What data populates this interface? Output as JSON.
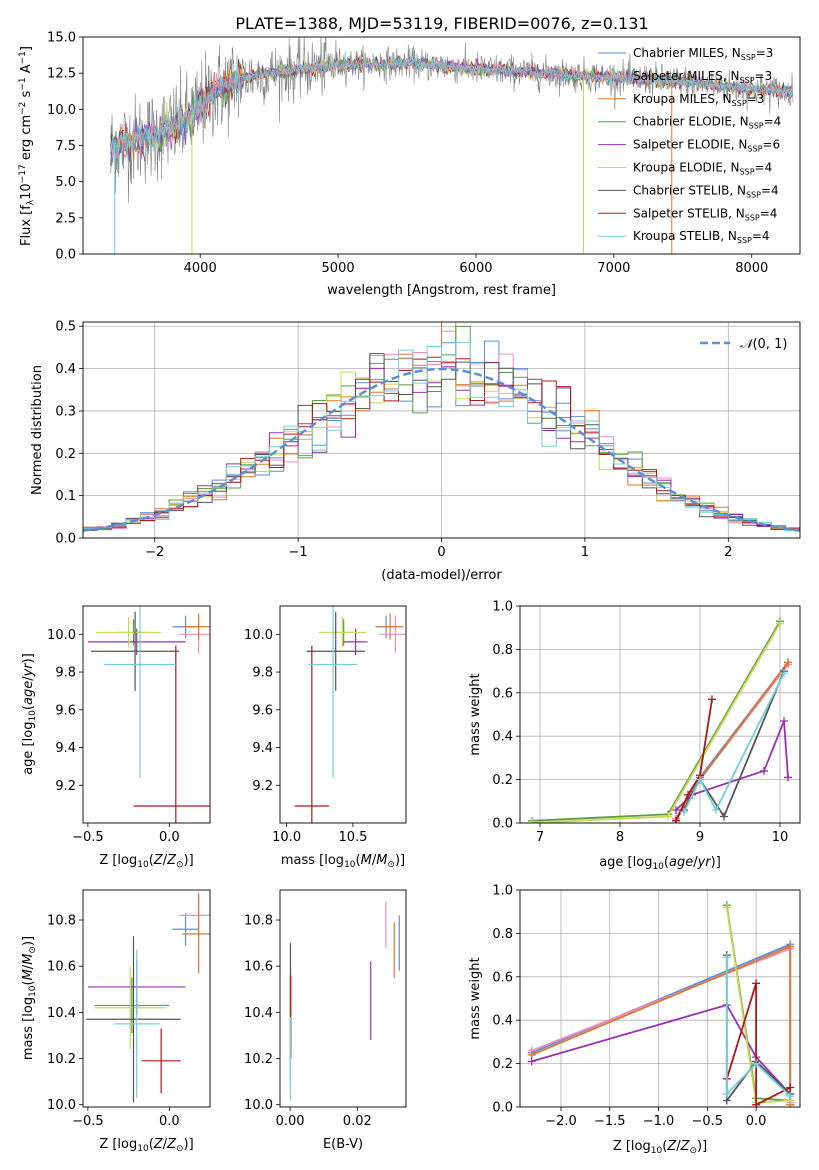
{
  "figure_title": "PLATE=1388, MJD=53119, FIBERID=0076, z=0.131",
  "models": [
    {
      "name": "Chabrier MILES, N<sub>SSP</sub>=3",
      "plain": "Chabrier MILES, NSSP=3",
      "color": "#5b8fd6"
    },
    {
      "name": "Salpeter MILES",
      "plain": "Salpeter MILES, NSSP=3",
      "color": "#f08cc0"
    },
    {
      "name": "Kroupa MILES",
      "plain": "Kroupa MILES, NSSP=3",
      "color": "#e0782c"
    },
    {
      "name": "Chabrier ELODIE",
      "plain": "Chabrier ELODIE, NSSP=4",
      "color": "#5a9e48"
    },
    {
      "name": "Salpeter ELODIE",
      "plain": "Salpeter ELODIE, NSSP=6",
      "color": "#9a30b0"
    },
    {
      "name": "Kroupa ELODIE",
      "plain": "Kroupa ELODIE, NSSP=4",
      "color": "#c8d850"
    },
    {
      "name": "Chabrier STELIB",
      "plain": "Chabrier STELIB, NSSP=4",
      "color": "#555555"
    },
    {
      "name": "Salpeter STELIB",
      "plain": "Salpeter STELIB, NSSP=4",
      "color": "#b01818"
    },
    {
      "name": "Kroupa STELIB",
      "plain": "Kroupa STELIB, NSSP=4",
      "color": "#70d0d8"
    }
  ],
  "legend": [
    {
      "base": "Chabrier MILES, N",
      "sub": "SSP",
      "tail": "=3"
    },
    {
      "base": "Salpeter MILES, N",
      "sub": "SSP",
      "tail": "=3"
    },
    {
      "base": "Kroupa MILES, N",
      "sub": "SSP",
      "tail": "=3"
    },
    {
      "base": "Chabrier ELODIE, N",
      "sub": "SSP",
      "tail": "=4"
    },
    {
      "base": "Salpeter ELODIE, N",
      "sub": "SSP",
      "tail": "=6"
    },
    {
      "base": "Kroupa ELODIE, N",
      "sub": "SSP",
      "tail": "=4"
    },
    {
      "base": "Chabrier STELIB, N",
      "sub": "SSP",
      "tail": "=4"
    },
    {
      "base": "Salpeter STELIB, N",
      "sub": "SSP",
      "tail": "=4"
    },
    {
      "base": "Kroupa STELIB, N",
      "sub": "SSP",
      "tail": "=4"
    }
  ],
  "chart_data": [
    {
      "id": "spectrum",
      "type": "line",
      "xlabel": "wavelength [Angstrom, rest frame]",
      "ylabel": "Flux [f_λ 10^-17 erg cm^-2 s^-1 A^-1]",
      "xlim": [
        3150,
        8350
      ],
      "ylim": [
        0,
        15
      ],
      "xticks": [
        4000,
        5000,
        6000,
        7000,
        8000
      ],
      "yticks": [
        0.0,
        2.5,
        5.0,
        7.5,
        10.0,
        12.5,
        15.0
      ],
      "grid": false,
      "legend_position": "right",
      "continuum": {
        "x": [
          3350,
          3500,
          3700,
          3900,
          4100,
          4300,
          4600,
          5000,
          5500,
          6000,
          6500,
          7000,
          7500,
          8000,
          8300
        ],
        "y": [
          7.4,
          7.8,
          8.3,
          9.2,
          11.2,
          12.2,
          12.6,
          13.1,
          13.2,
          12.8,
          12.5,
          12.2,
          11.9,
          11.4,
          11.2
        ]
      },
      "absorption_spikes": [
        {
          "x": 3940,
          "y": 0
        },
        {
          "x": 6780,
          "y": 0
        },
        {
          "x": 7420,
          "y": 0
        },
        {
          "x": 3380,
          "y": 0
        }
      ]
    },
    {
      "id": "residuals",
      "type": "step",
      "xlabel": "(data-model)/error",
      "ylabel": "Normed distribution",
      "xlim": [
        -2.5,
        2.5
      ],
      "ylim": [
        0,
        0.51
      ],
      "xticks": [
        -2,
        -1,
        0,
        1,
        2
      ],
      "yticks": [
        0.0,
        0.1,
        0.2,
        0.3,
        0.4,
        0.5
      ],
      "grid": true,
      "legend_position": "top-right",
      "reference_curve": {
        "name": "N(0,1)",
        "mean": 0,
        "sigma": 1
      },
      "bin_width": 0.1
    },
    {
      "id": "age_vs_Z",
      "type": "errorbar",
      "xlabel": "Z [log10(Z/Z⊙)]",
      "ylabel": "age [log10(age/yr)]",
      "xlim": [
        -0.53,
        0.25
      ],
      "ylim": [
        9.0,
        10.15
      ],
      "xticks": [
        -0.5,
        0.0
      ],
      "yticks": [
        9.2,
        9.4,
        9.6,
        9.8,
        10.0
      ],
      "points": [
        {
          "m": 0,
          "x": 0.1,
          "y": 10.04,
          "xerr": 0.08,
          "yerr": 0.06
        },
        {
          "m": 1,
          "x": 0.18,
          "y": 10.0,
          "xerr": 0.12,
          "yerr": 0.1
        },
        {
          "m": 2,
          "x": 0.18,
          "y": 10.04,
          "xerr": 0.1,
          "yerr": 0.07
        },
        {
          "m": 3,
          "x": -0.22,
          "y": 10.01,
          "xerr": 0.1,
          "yerr": 0.07
        },
        {
          "m": 4,
          "x": -0.2,
          "y": 9.96,
          "xerr": 0.3,
          "yerr": 0.07
        },
        {
          "m": 5,
          "x": -0.25,
          "y": 10.01,
          "xerr": 0.2,
          "yerr": 0.08
        },
        {
          "m": 6,
          "x": -0.21,
          "y": 9.91,
          "xerr": 0.27,
          "yerr": 0.21
        },
        {
          "m": 7,
          "x": 0.04,
          "y": 9.09,
          "xerr": 0.26,
          "yerr": 0.85
        },
        {
          "m": 8,
          "x": -0.18,
          "y": 9.84,
          "xerr": 0.22,
          "yerr": 0.6
        }
      ]
    },
    {
      "id": "age_vs_mass",
      "type": "errorbar",
      "xlabel": "mass [log10(M/M⊙)]",
      "ylabel": "",
      "xlim": [
        9.95,
        10.9
      ],
      "ylim": [
        9.0,
        10.15
      ],
      "xticks": [
        10.0,
        10.5
      ],
      "yticks": [
        9.2,
        9.4,
        9.6,
        9.8,
        10.0
      ],
      "points": [
        {
          "m": 0,
          "x": 10.75,
          "y": 10.04,
          "xerr": 0.08,
          "yerr": 0.06
        },
        {
          "m": 1,
          "x": 10.82,
          "y": 10.0,
          "xerr": 0.12,
          "yerr": 0.1
        },
        {
          "m": 2,
          "x": 10.78,
          "y": 10.04,
          "xerr": 0.1,
          "yerr": 0.07
        },
        {
          "m": 3,
          "x": 10.43,
          "y": 10.01,
          "xerr": 0.11,
          "yerr": 0.07
        },
        {
          "m": 4,
          "x": 10.52,
          "y": 9.96,
          "xerr": 0.09,
          "yerr": 0.07
        },
        {
          "m": 5,
          "x": 10.42,
          "y": 10.01,
          "xerr": 0.18,
          "yerr": 0.08
        },
        {
          "m": 6,
          "x": 10.37,
          "y": 9.91,
          "xerr": 0.22,
          "yerr": 0.21
        },
        {
          "m": 7,
          "x": 10.19,
          "y": 9.09,
          "xerr": 0.13,
          "yerr": 0.85
        },
        {
          "m": 8,
          "x": 10.35,
          "y": 9.84,
          "xerr": 0.18,
          "yerr": 0.6
        }
      ]
    },
    {
      "id": "weight_vs_age",
      "type": "line",
      "xlabel": "age [log10(age/yr)]",
      "ylabel": "mass weight",
      "xlim": [
        6.75,
        10.25
      ],
      "ylim": [
        0,
        1
      ],
      "xticks": [
        7,
        8,
        9,
        10
      ],
      "yticks": [
        0.0,
        0.2,
        0.4,
        0.6,
        0.8,
        1.0
      ],
      "grid": true,
      "series": [
        {
          "m": 0,
          "x": [
            8.7,
            9.0,
            10.1
          ],
          "y": [
            0.02,
            0.21,
            0.74
          ]
        },
        {
          "m": 1,
          "x": [
            8.7,
            9.0,
            10.1
          ],
          "y": [
            0.02,
            0.2,
            0.73
          ]
        },
        {
          "m": 2,
          "x": [
            8.7,
            9.0,
            10.1
          ],
          "y": [
            0.01,
            0.2,
            0.74
          ]
        },
        {
          "m": 3,
          "x": [
            6.9,
            8.6,
            10.0
          ],
          "y": [
            0.01,
            0.04,
            0.93
          ]
        },
        {
          "m": 4,
          "x": [
            8.7,
            8.9,
            9.8,
            10.05,
            10.1
          ],
          "y": [
            0.06,
            0.13,
            0.24,
            0.47,
            0.21
          ]
        },
        {
          "m": 5,
          "x": [
            6.9,
            8.6,
            10.0
          ],
          "y": [
            0.0,
            0.03,
            0.92
          ]
        },
        {
          "m": 6,
          "x": [
            8.8,
            9.0,
            9.3,
            10.05
          ],
          "y": [
            0.06,
            0.2,
            0.03,
            0.7
          ]
        },
        {
          "m": 7,
          "x": [
            8.7,
            8.85,
            9.0,
            9.15
          ],
          "y": [
            0.01,
            0.13,
            0.22,
            0.57
          ]
        },
        {
          "m": 8,
          "x": [
            8.8,
            9.0,
            9.2,
            10.05
          ],
          "y": [
            0.05,
            0.2,
            0.06,
            0.69
          ]
        }
      ]
    },
    {
      "id": "mass_vs_Z",
      "type": "errorbar",
      "xlabel": "Z [log10(Z/Z⊙)]",
      "ylabel": "mass [log10(M/M⊙)]",
      "xlim": [
        -0.53,
        0.25
      ],
      "ylim": [
        9.99,
        10.93
      ],
      "xticks": [
        -0.5,
        0.0
      ],
      "yticks": [
        10.0,
        10.2,
        10.4,
        10.6,
        10.8
      ],
      "points": [
        {
          "m": 0,
          "x": 0.1,
          "y": 10.76,
          "xerr": 0.08,
          "yerr": 0.07
        },
        {
          "m": 1,
          "x": 0.18,
          "y": 10.82,
          "xerr": 0.12,
          "yerr": 0.1
        },
        {
          "m": 2,
          "x": 0.18,
          "y": 10.74,
          "xerr": 0.1,
          "yerr": 0.17
        },
        {
          "m": 3,
          "x": -0.23,
          "y": 10.43,
          "xerr": 0.23,
          "yerr": 0.12
        },
        {
          "m": 4,
          "x": -0.2,
          "y": 10.51,
          "xerr": 0.3,
          "yerr": 0.12
        },
        {
          "m": 5,
          "x": -0.24,
          "y": 10.42,
          "xerr": 0.22,
          "yerr": 0.18
        },
        {
          "m": 6,
          "x": -0.22,
          "y": 10.37,
          "xerr": 0.29,
          "yerr": 0.36
        },
        {
          "m": 7,
          "x": -0.05,
          "y": 10.19,
          "xerr": 0.12,
          "yerr": 0.14
        },
        {
          "m": 8,
          "x": -0.2,
          "y": 10.35,
          "xerr": 0.14,
          "yerr": 0.32
        }
      ]
    },
    {
      "id": "mass_vs_ebv",
      "type": "errorbar",
      "xlabel": "E(B-V)",
      "ylabel": "",
      "xlim": [
        -0.003,
        0.0345
      ],
      "ylim": [
        9.99,
        10.93
      ],
      "xticks": [
        0.0,
        0.02
      ],
      "yticks": [
        10.0,
        10.2,
        10.4,
        10.6,
        10.8
      ],
      "points": [
        {
          "m": 0,
          "x": 0.0325,
          "y": 10.7,
          "xerr": 0,
          "yerr": 0.12
        },
        {
          "m": 1,
          "x": 0.0285,
          "y": 10.78,
          "xerr": 0,
          "yerr": 0.1
        },
        {
          "m": 2,
          "x": 0.031,
          "y": 10.67,
          "xerr": 0,
          "yerr": 0.12
        },
        {
          "m": 3,
          "x": 0.0001,
          "y": 10.42,
          "xerr": 0,
          "yerr": 0.12
        },
        {
          "m": 4,
          "x": 0.024,
          "y": 10.45,
          "xerr": 0,
          "yerr": 0.17
        },
        {
          "m": 5,
          "x": 0.0002,
          "y": 10.42,
          "xerr": 0,
          "yerr": 0.18
        },
        {
          "m": 6,
          "x": 0.0001,
          "y": 10.4,
          "xerr": 0,
          "yerr": 0.3
        },
        {
          "m": 7,
          "x": 0.0002,
          "y": 10.38,
          "xerr": 0,
          "yerr": 0.18
        },
        {
          "m": 8,
          "x": 0.0001,
          "y": 10.2,
          "xerr": 0,
          "yerr": 0.18
        }
      ]
    },
    {
      "id": "weight_vs_Z",
      "type": "line",
      "xlabel": "Z [log10(Z/Z⊙)]",
      "ylabel": "mass weight",
      "xlim": [
        -2.42,
        0.45
      ],
      "ylim": [
        0,
        1
      ],
      "xticks": [
        -2.0,
        -1.5,
        -1.0,
        -0.5,
        0.0
      ],
      "yticks": [
        0.0,
        0.2,
        0.4,
        0.6,
        0.8,
        1.0
      ],
      "grid": true,
      "series": [
        {
          "m": 0,
          "x": [
            -2.3,
            0.35,
            0.35
          ],
          "y": [
            0.25,
            0.75,
            0.01
          ]
        },
        {
          "m": 1,
          "x": [
            -2.3,
            0.35,
            0.35
          ],
          "y": [
            0.26,
            0.73,
            0.02
          ]
        },
        {
          "m": 2,
          "x": [
            -2.3,
            0.35,
            0.35
          ],
          "y": [
            0.24,
            0.74,
            0.01
          ]
        },
        {
          "m": 3,
          "x": [
            -0.3,
            0.0,
            0.35
          ],
          "y": [
            0.93,
            0.04,
            0.03
          ]
        },
        {
          "m": 4,
          "x": [
            -2.3,
            -0.3,
            0.0,
            0.35
          ],
          "y": [
            0.21,
            0.47,
            0.23,
            0.06
          ]
        },
        {
          "m": 5,
          "x": [
            -0.3,
            0.0,
            0.35
          ],
          "y": [
            0.92,
            0.02,
            0.03
          ]
        },
        {
          "m": 6,
          "x": [
            -0.3,
            -0.3,
            0.0,
            0.35
          ],
          "y": [
            0.7,
            0.03,
            0.21,
            0.06
          ]
        },
        {
          "m": 7,
          "x": [
            -0.3,
            0.0,
            0.0,
            0.35
          ],
          "y": [
            0.13,
            0.57,
            0.01,
            0.09
          ]
        },
        {
          "m": 8,
          "x": [
            -0.3,
            -0.3,
            0.0,
            0.35
          ],
          "y": [
            0.69,
            0.06,
            0.2,
            0.05
          ]
        }
      ]
    }
  ]
}
